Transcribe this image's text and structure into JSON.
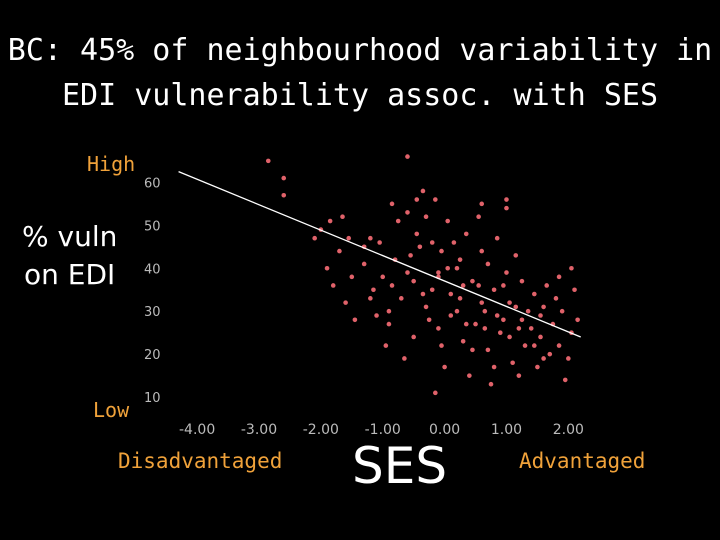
{
  "slide": {
    "title_line1": "BC: 45% of neighbourhood variability in",
    "title_line2": "EDI vulnerability assoc. with SES",
    "high_label": "High",
    "low_label": "Low",
    "ylabel_line1": "% vuln",
    "ylabel_line2": "on EDI",
    "disadvantaged_label": "Disadvantaged",
    "advantaged_label": "Advantaged",
    "ses_label": "SES"
  },
  "colors": {
    "background": "#000000",
    "title": "#ffffff",
    "accent_labels": "#f0a23a",
    "points": "#e0626a",
    "trendline": "#ffffff",
    "axis_ticks": "#bbbbbb"
  },
  "chart_data": {
    "type": "scatter",
    "title": "",
    "xlabel": "SES",
    "ylabel": "% vuln on EDI",
    "xlim": [
      -4.6,
      2.35
    ],
    "ylim": [
      7,
      68
    ],
    "x_ticks": [
      "-4.00",
      "-3.00",
      "-2.00",
      "-1.00",
      "0.00",
      "1.00",
      "2.00"
    ],
    "x_tick_values": [
      -4,
      -3,
      -2,
      -1,
      0,
      1,
      2
    ],
    "y_ticks": [
      "10",
      "20",
      "30",
      "40",
      "50",
      "60"
    ],
    "y_tick_values": [
      10,
      20,
      30,
      40,
      50,
      60
    ],
    "grid": false,
    "trendline": {
      "x": [
        -4.3,
        2.2
      ],
      "y": [
        62.5,
        24
      ]
    },
    "series": [
      {
        "points": [
          [
            -2.85,
            65
          ],
          [
            -2.6,
            57
          ],
          [
            -2.6,
            61
          ],
          [
            -2.1,
            47
          ],
          [
            -1.9,
            40
          ],
          [
            -1.85,
            51
          ],
          [
            -1.65,
            52
          ],
          [
            -1.55,
            47
          ],
          [
            -1.3,
            45
          ],
          [
            -1.2,
            47
          ],
          [
            -1.05,
            46
          ],
          [
            -1.6,
            32
          ],
          [
            -1.45,
            28
          ],
          [
            -1.15,
            35
          ],
          [
            -0.95,
            22
          ],
          [
            -0.9,
            30
          ],
          [
            -1.0,
            38
          ],
          [
            -0.85,
            55
          ],
          [
            -0.75,
            51
          ],
          [
            -0.6,
            53
          ],
          [
            -0.6,
            66
          ],
          [
            -0.55,
            43
          ],
          [
            -0.5,
            37
          ],
          [
            -0.45,
            48
          ],
          [
            -0.35,
            58
          ],
          [
            -0.3,
            52
          ],
          [
            -0.2,
            46
          ],
          [
            -0.15,
            56
          ],
          [
            -0.1,
            39
          ],
          [
            -0.05,
            44
          ],
          [
            0.05,
            51
          ],
          [
            0.1,
            34
          ],
          [
            0.15,
            46
          ],
          [
            0.2,
            40
          ],
          [
            0.25,
            33
          ],
          [
            0.35,
            48
          ],
          [
            0.45,
            37
          ],
          [
            0.55,
            52
          ],
          [
            0.6,
            44
          ],
          [
            0.65,
            30
          ],
          [
            0.7,
            41
          ],
          [
            0.8,
            35
          ],
          [
            0.85,
            47
          ],
          [
            0.95,
            28
          ],
          [
            1.0,
            39
          ],
          [
            1.05,
            32
          ],
          [
            1.15,
            43
          ],
          [
            1.2,
            26
          ],
          [
            1.25,
            37
          ],
          [
            1.35,
            30
          ],
          [
            1.45,
            34
          ],
          [
            1.55,
            24
          ],
          [
            1.6,
            31
          ],
          [
            1.75,
            27
          ],
          [
            1.85,
            22
          ],
          [
            1.95,
            14
          ],
          [
            2.0,
            19
          ],
          [
            2.05,
            40
          ],
          [
            2.1,
            35
          ],
          [
            1.9,
            30
          ],
          [
            1.7,
            20
          ],
          [
            1.5,
            17
          ],
          [
            1.3,
            22
          ],
          [
            1.1,
            18
          ],
          [
            0.9,
            25
          ],
          [
            0.7,
            21
          ],
          [
            0.5,
            27
          ],
          [
            0.3,
            23
          ],
          [
            0.1,
            29
          ],
          [
            -0.1,
            26
          ],
          [
            -0.3,
            31
          ],
          [
            -0.5,
            24
          ],
          [
            -0.7,
            33
          ],
          [
            -0.9,
            27
          ],
          [
            0.0,
            17
          ],
          [
            -0.15,
            11
          ],
          [
            -0.65,
            19
          ],
          [
            0.4,
            15
          ],
          [
            0.75,
            13
          ],
          [
            1.0,
            56
          ],
          [
            1.0,
            54
          ],
          [
            0.6,
            55
          ],
          [
            -0.45,
            56
          ],
          [
            -0.1,
            38
          ],
          [
            0.25,
            42
          ],
          [
            0.55,
            36
          ],
          [
            0.85,
            29
          ],
          [
            1.15,
            31
          ],
          [
            1.4,
            26
          ],
          [
            1.65,
            36
          ],
          [
            -1.3,
            41
          ],
          [
            -1.1,
            29
          ],
          [
            -0.8,
            42
          ],
          [
            -0.4,
            45
          ],
          [
            -0.2,
            35
          ],
          [
            0.05,
            40
          ],
          [
            0.3,
            36
          ],
          [
            0.6,
            32
          ],
          [
            0.95,
            36
          ],
          [
            1.25,
            28
          ],
          [
            1.55,
            29
          ],
          [
            1.8,
            33
          ],
          [
            2.05,
            25
          ],
          [
            1.85,
            38
          ],
          [
            1.45,
            22
          ],
          [
            1.05,
            24
          ],
          [
            0.65,
            26
          ],
          [
            0.2,
            30
          ],
          [
            -0.25,
            28
          ],
          [
            -0.6,
            39
          ],
          [
            -0.85,
            36
          ],
          [
            -1.2,
            33
          ],
          [
            -1.5,
            38
          ],
          [
            -1.7,
            44
          ],
          [
            -2.0,
            49
          ],
          [
            -1.8,
            36
          ],
          [
            -0.35,
            34
          ],
          [
            0.45,
            21
          ],
          [
            0.8,
            17
          ],
          [
            1.2,
            15
          ],
          [
            1.6,
            19
          ],
          [
            2.15,
            28
          ],
          [
            -0.05,
            22
          ],
          [
            0.35,
            27
          ]
        ]
      }
    ]
  }
}
